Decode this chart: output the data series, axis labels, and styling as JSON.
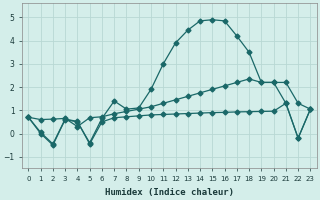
{
  "xlabel": "Humidex (Indice chaleur)",
  "bg_color": "#d4eeea",
  "grid_color": "#b8d8d4",
  "line_color": "#1a6868",
  "xlim": [
    -0.5,
    23.5
  ],
  "ylim": [
    -1.5,
    5.6
  ],
  "yticks": [
    -1,
    0,
    1,
    2,
    3,
    4,
    5
  ],
  "xticks": [
    0,
    1,
    2,
    3,
    4,
    5,
    6,
    7,
    8,
    9,
    10,
    11,
    12,
    13,
    14,
    15,
    16,
    17,
    18,
    19,
    20,
    21,
    22,
    23
  ],
  "series1_x": [
    0,
    1,
    2,
    3,
    4,
    5,
    6,
    7,
    8,
    9,
    10,
    11,
    12,
    13,
    14,
    15,
    16,
    17,
    18,
    19,
    20,
    21,
    22,
    23
  ],
  "series1_y": [
    0.7,
    0.0,
    -0.5,
    0.6,
    0.5,
    -0.4,
    0.65,
    1.4,
    1.05,
    1.1,
    1.9,
    3.0,
    3.9,
    4.45,
    4.85,
    4.9,
    4.85,
    4.2,
    3.5,
    2.2,
    2.2,
    1.3,
    -0.2,
    1.05
  ],
  "series2_x": [
    0,
    1,
    2,
    3,
    4,
    5,
    6,
    7,
    8,
    9,
    10,
    11,
    12,
    13,
    14,
    15,
    16,
    17,
    18,
    19,
    20,
    21,
    22,
    23
  ],
  "series2_y": [
    0.7,
    0.6,
    0.62,
    0.65,
    0.3,
    0.68,
    0.72,
    0.85,
    0.95,
    1.05,
    1.15,
    1.3,
    1.45,
    1.6,
    1.75,
    1.9,
    2.05,
    2.2,
    2.35,
    2.2,
    2.2,
    2.2,
    1.3,
    1.05
  ],
  "series3_x": [
    0,
    1,
    2,
    3,
    4,
    5,
    6,
    7,
    8,
    9,
    10,
    11,
    12,
    13,
    14,
    15,
    16,
    17,
    18,
    19,
    20,
    21,
    22,
    23
  ],
  "series3_y": [
    0.7,
    0.05,
    -0.45,
    0.62,
    0.52,
    -0.45,
    0.5,
    0.68,
    0.72,
    0.76,
    0.8,
    0.82,
    0.84,
    0.86,
    0.88,
    0.9,
    0.91,
    0.93,
    0.94,
    0.95,
    0.96,
    1.3,
    -0.2,
    1.05
  ],
  "figsize": [
    3.2,
    2.0
  ],
  "dpi": 100
}
